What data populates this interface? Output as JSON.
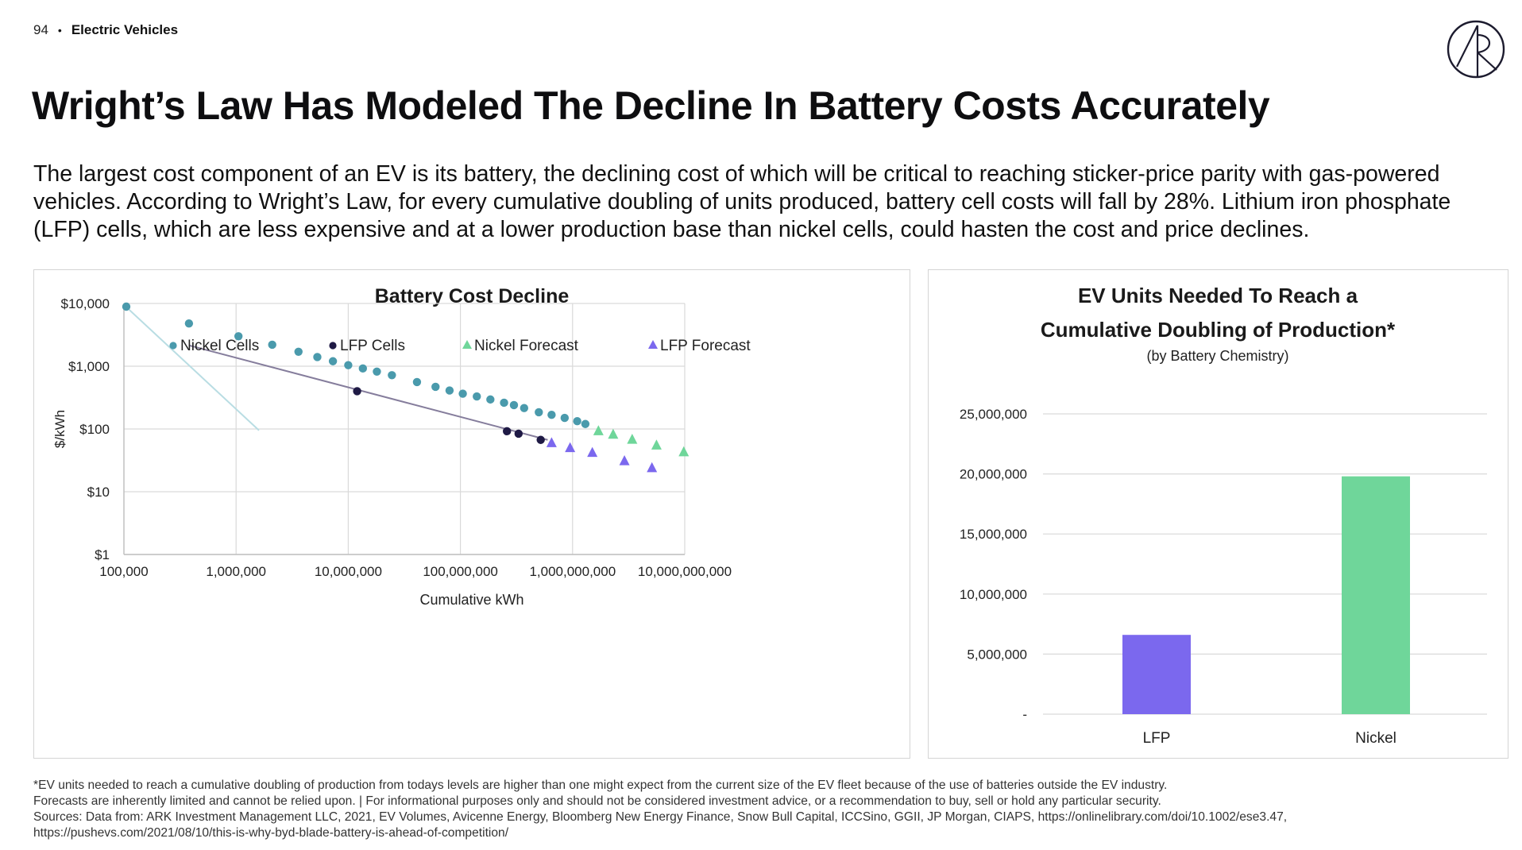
{
  "header": {
    "page_number": "94",
    "separator": "•",
    "section": "Electric Vehicles"
  },
  "title": "Wright’s Law Has Modeled The Decline In Battery Costs Accurately",
  "intro": "The largest cost component of an EV is its battery, the declining cost of which will be critical to reaching sticker-price parity with gas-powered vehicles. According to Wright’s Law, for every cumulative doubling of units produced, battery cell costs will fall by 28%. Lithium iron phosphate (LFP) cells, which are less expensive and at a lower production base than nickel cells, could hasten the cost and price declines.",
  "colors": {
    "nickel": "#4a9aac",
    "lfp": "#1f1a45",
    "nickel_forecast": "#6fd69a",
    "lfp_forecast": "#7b68ee",
    "bar_lfp": "#7b68ee",
    "bar_nickel": "#6fd69a",
    "nickel_trend": "#b9dde3",
    "lfp_trend": "#857d9c",
    "grid": "#d9d9d9"
  },
  "chart_data": [
    {
      "type": "scatter",
      "title": "Battery Cost Decline",
      "xlabel": "Cumulative kWh",
      "ylabel": "$/kWh",
      "x_scale": "log",
      "y_scale": "log",
      "xlim": [
        100000,
        10000000000
      ],
      "ylim": [
        1,
        10000
      ],
      "x_ticks": [
        {
          "value": 100000,
          "label": "100,000"
        },
        {
          "value": 1000000,
          "label": "1,000,000"
        },
        {
          "value": 10000000,
          "label": "10,000,000"
        },
        {
          "value": 100000000,
          "label": "100,000,000"
        },
        {
          "value": 1000000000,
          "label": "1,000,000,000"
        },
        {
          "value": 10000000000,
          "label": "10,000,000,000"
        }
      ],
      "y_ticks": [
        {
          "value": 1,
          "label": "$1"
        },
        {
          "value": 10,
          "label": "$10"
        },
        {
          "value": 100,
          "label": "$100"
        },
        {
          "value": 1000,
          "label": "$1,000"
        },
        {
          "value": 10000,
          "label": "$10,000"
        }
      ],
      "grid": true,
      "legend_position": "top",
      "series": [
        {
          "name": "Nickel Cells",
          "marker": "circle",
          "color_key": "nickel",
          "points": [
            [
              105000,
              8900
            ],
            [
              380000,
              4800
            ],
            [
              1050000,
              3000
            ],
            [
              2100000,
              2200
            ],
            [
              3600000,
              1700
            ],
            [
              5300000,
              1400
            ],
            [
              7300000,
              1200
            ],
            [
              10000000,
              1040
            ],
            [
              13500000,
              920
            ],
            [
              18000000,
              820
            ],
            [
              24500000,
              720
            ],
            [
              41000000,
              560
            ],
            [
              60000000,
              470
            ],
            [
              80000000,
              410
            ],
            [
              105000000,
              365
            ],
            [
              140000000,
              330
            ],
            [
              185000000,
              295
            ],
            [
              245000000,
              262
            ],
            [
              300000000,
              240
            ],
            [
              370000000,
              215
            ],
            [
              500000000,
              185
            ],
            [
              650000000,
              168
            ],
            [
              850000000,
              150
            ],
            [
              1100000000,
              133
            ],
            [
              1300000000,
              120
            ]
          ],
          "trend": [
            [
              100000,
              9500
            ],
            [
              1600000,
              95
            ]
          ]
        },
        {
          "name": "LFP Cells",
          "marker": "circle",
          "color_key": "lfp",
          "points": [
            [
              12000000,
              400
            ],
            [
              260000000,
              92
            ],
            [
              330000000,
              84
            ],
            [
              520000000,
              67
            ]
          ],
          "trend": [
            [
              380000,
              2150
            ],
            [
              600000000,
              67
            ]
          ]
        },
        {
          "name": "Nickel Forecast",
          "marker": "triangle",
          "color_key": "nickel_forecast",
          "points": [
            [
              1700000000,
              93
            ],
            [
              2300000000,
              82
            ],
            [
              3400000000,
              68
            ],
            [
              5600000000,
              55
            ],
            [
              9800000000,
              43
            ]
          ]
        },
        {
          "name": "LFP Forecast",
          "marker": "triangle",
          "color_key": "lfp_forecast",
          "points": [
            [
              650000000,
              60
            ],
            [
              950000000,
              50
            ],
            [
              1500000000,
              42
            ],
            [
              2900000000,
              31
            ],
            [
              5100000000,
              24
            ]
          ]
        }
      ]
    },
    {
      "type": "bar",
      "title_line1": "EV Units Needed To Reach a",
      "title_line2": "Cumulative Doubling of Production*",
      "subtitle": "(by Battery Chemistry)",
      "categories": [
        "LFP",
        "Nickel"
      ],
      "values": [
        6600000,
        19800000
      ],
      "ylim": [
        0,
        25000000
      ],
      "y_ticks": [
        {
          "value": 0,
          "label": "-"
        },
        {
          "value": 5000000,
          "label": "5,000,000"
        },
        {
          "value": 10000000,
          "label": "10,000,000"
        },
        {
          "value": 15000000,
          "label": "15,000,000"
        },
        {
          "value": 20000000,
          "label": "20,000,000"
        },
        {
          "value": 25000000,
          "label": "25,000,000"
        }
      ],
      "grid": true
    }
  ],
  "footnotes": [
    "*EV units needed to reach a cumulative doubling of production from todays levels are higher than one might expect from the current size of the EV fleet because of the use of batteries outside the EV industry.",
    "Forecasts are inherently limited and cannot be relied upon. | For informational purposes only and should not be considered investment advice, or a recommendation to buy, sell or hold any particular security.",
    "Sources: Data from: ARK Investment Management LLC, 2021, EV Volumes, Avicenne Energy, Bloomberg New Energy Finance, Snow Bull Capital, ICCSino, GGII, JP Morgan, CIAPS, https://onlinelibrary.com/doi/10.1002/ese3.47,",
    "https://pushevs.com/2021/08/10/this-is-why-byd-blade-battery-is-ahead-of-competition/"
  ]
}
